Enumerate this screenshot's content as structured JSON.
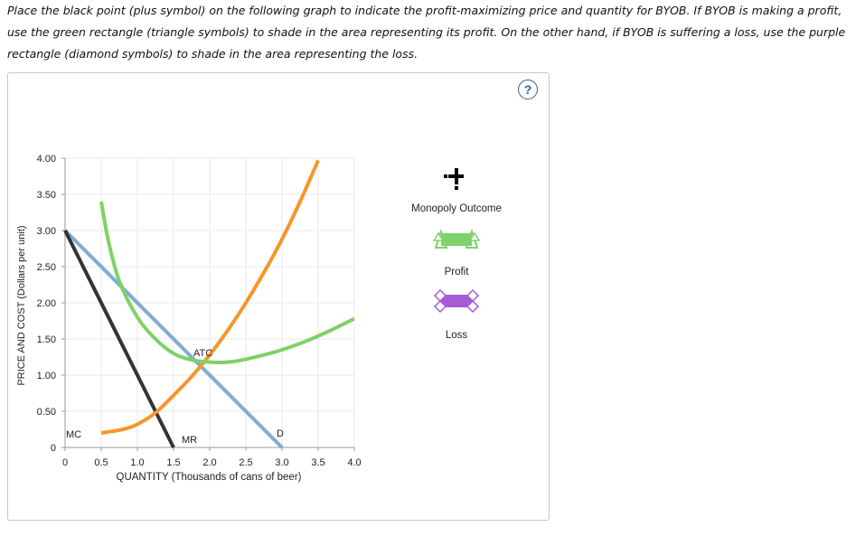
{
  "instructions": {
    "line1": "Place the black point (plus symbol) on the following graph to indicate the profit-maximizing price and quantity for BYOB. If BYOB is making a profit,",
    "line2": "use the green rectangle (triangle symbols) to shade in the area representing its profit. On the other hand, if BYOB is suffering a loss, use the purple",
    "line3": "rectangle (diamond symbols) to shade in the area representing the loss."
  },
  "help": {
    "label": "?",
    "icon": "help-circle-icon"
  },
  "legend": {
    "monopoly_outcome": "Monopoly Outcome",
    "profit": "Profit",
    "loss": "Loss",
    "colors": {
      "point": "#000000",
      "profit": "#7ed36a",
      "profit_border": "#5cb84a",
      "loss": "#a65ad6",
      "loss_border": "#8a3fc0"
    }
  },
  "chart_data": {
    "type": "line",
    "xlabel": "QUANTITY (Thousands of cans of beer)",
    "ylabel": "PRICE AND COST (Dollars per unit)",
    "xlim": [
      0,
      4.0
    ],
    "ylim": [
      0,
      4.0
    ],
    "x_ticks": [
      "0",
      "0.5",
      "1.0",
      "1.5",
      "2.0",
      "2.5",
      "3.0",
      "3.5",
      "4.0"
    ],
    "y_ticks": [
      "0",
      "0.50",
      "1.00",
      "1.50",
      "2.00",
      "2.50",
      "3.00",
      "3.50",
      "4.00"
    ],
    "grid": true,
    "series": [
      {
        "name": "D",
        "color": "#7fadd4",
        "points": [
          [
            0,
            3.0
          ],
          [
            3.0,
            0
          ]
        ]
      },
      {
        "name": "MR",
        "color": "#333333",
        "points": [
          [
            0,
            3.0
          ],
          [
            1.5,
            0
          ]
        ]
      },
      {
        "name": "MC",
        "color": "#f7952a",
        "points": [
          [
            0.5,
            0.2
          ],
          [
            0.8,
            0.25
          ],
          [
            1.0,
            0.32
          ],
          [
            1.25,
            0.48
          ],
          [
            1.5,
            0.72
          ],
          [
            1.75,
            0.98
          ],
          [
            2.0,
            1.28
          ],
          [
            2.25,
            1.62
          ],
          [
            2.5,
            2.0
          ],
          [
            2.75,
            2.42
          ],
          [
            3.0,
            2.88
          ],
          [
            3.25,
            3.4
          ],
          [
            3.5,
            3.97
          ]
        ]
      },
      {
        "name": "ATC",
        "color": "#7fd166",
        "points": [
          [
            0.5,
            3.4
          ],
          [
            0.6,
            2.85
          ],
          [
            0.75,
            2.3
          ],
          [
            1.0,
            1.8
          ],
          [
            1.25,
            1.5
          ],
          [
            1.5,
            1.3
          ],
          [
            1.75,
            1.21
          ],
          [
            2.0,
            1.18
          ],
          [
            2.25,
            1.18
          ],
          [
            2.5,
            1.22
          ],
          [
            3.0,
            1.35
          ],
          [
            3.5,
            1.54
          ],
          [
            4.0,
            1.78
          ]
        ]
      }
    ],
    "curve_labels": {
      "mc": "MC",
      "mr": "MR",
      "d": "D",
      "atc": "ATC"
    }
  }
}
